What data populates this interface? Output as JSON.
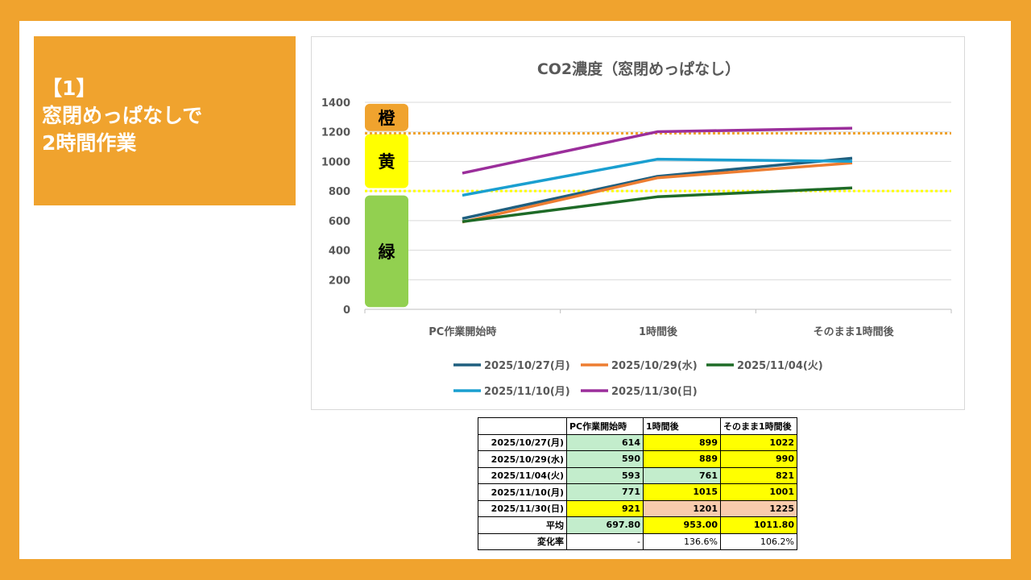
{
  "slide_title": {
    "line1": "【1】",
    "line2": "窓閉めっぱなしで",
    "line3": "2時間作業"
  },
  "colors": {
    "background": "#F0A32E",
    "green_cell": "#C3EDCC",
    "yellow_cell": "#FFFF00",
    "salmon_cell": "#F8CBAD"
  },
  "chart_data": {
    "type": "line",
    "title": "CO2濃度（窓閉めっぱなし）",
    "categories": [
      "PC作業開始時",
      "1時間後",
      "そのまま1時間後"
    ],
    "ylim": [
      0,
      1400
    ],
    "yticks": [
      "0",
      "200",
      "400",
      "600",
      "800",
      "1000",
      "1200",
      "1400"
    ],
    "grid": true,
    "legend_position": "bottom",
    "series": [
      {
        "name": "2025/10/27(月)",
        "values": [
          614,
          899,
          1022
        ],
        "color": "#1F5F7F"
      },
      {
        "name": "2025/10/29(水)",
        "values": [
          590,
          889,
          990
        ],
        "color": "#ED7D31"
      },
      {
        "name": "2025/11/04(火)",
        "values": [
          593,
          761,
          821
        ],
        "color": "#1E6B27"
      },
      {
        "name": "2025/11/10(月)",
        "values": [
          771,
          1015,
          1001
        ],
        "color": "#1A9FD0"
      },
      {
        "name": "2025/11/30(日)",
        "values": [
          921,
          1201,
          1225
        ],
        "color": "#9B2E9B"
      }
    ],
    "zones": [
      {
        "label": "橙",
        "from": 1200,
        "to": 1400,
        "color": "#F0A32E"
      },
      {
        "label": "黄",
        "from": 800,
        "to": 1200,
        "color": "#FFFF00"
      },
      {
        "label": "緑",
        "from": 0,
        "to": 800,
        "color": "#92D050"
      }
    ],
    "thresholds": [
      {
        "value": 1190,
        "color": "#F0A32E"
      },
      {
        "value": 800,
        "color": "#FFFF00"
      }
    ]
  },
  "table": {
    "headers": [
      "",
      "PC作業開始時",
      "1時間後",
      "そのまま1時間後"
    ],
    "rows": [
      {
        "label": "2025/10/27(月)",
        "cells": [
          "614",
          "899",
          "1022"
        ],
        "fills": [
          "g",
          "y",
          "y"
        ]
      },
      {
        "label": "2025/10/29(水)",
        "cells": [
          "590",
          "889",
          "990"
        ],
        "fills": [
          "g",
          "y",
          "y"
        ]
      },
      {
        "label": "2025/11/04(火)",
        "cells": [
          "593",
          "761",
          "821"
        ],
        "fills": [
          "g",
          "g",
          "y"
        ]
      },
      {
        "label": "2025/11/10(月)",
        "cells": [
          "771",
          "1015",
          "1001"
        ],
        "fills": [
          "g",
          "y",
          "y"
        ]
      },
      {
        "label": "2025/11/30(日)",
        "cells": [
          "921",
          "1201",
          "1225"
        ],
        "fills": [
          "y",
          "s",
          "s"
        ]
      },
      {
        "label": "平均",
        "cells": [
          "697.80",
          "953.00",
          "1011.80"
        ],
        "fills": [
          "g",
          "y",
          "y"
        ]
      },
      {
        "label": "変化率",
        "cells": [
          "-",
          "136.6%",
          "106.2%"
        ],
        "fills": [
          "",
          "",
          ""
        ]
      }
    ]
  }
}
